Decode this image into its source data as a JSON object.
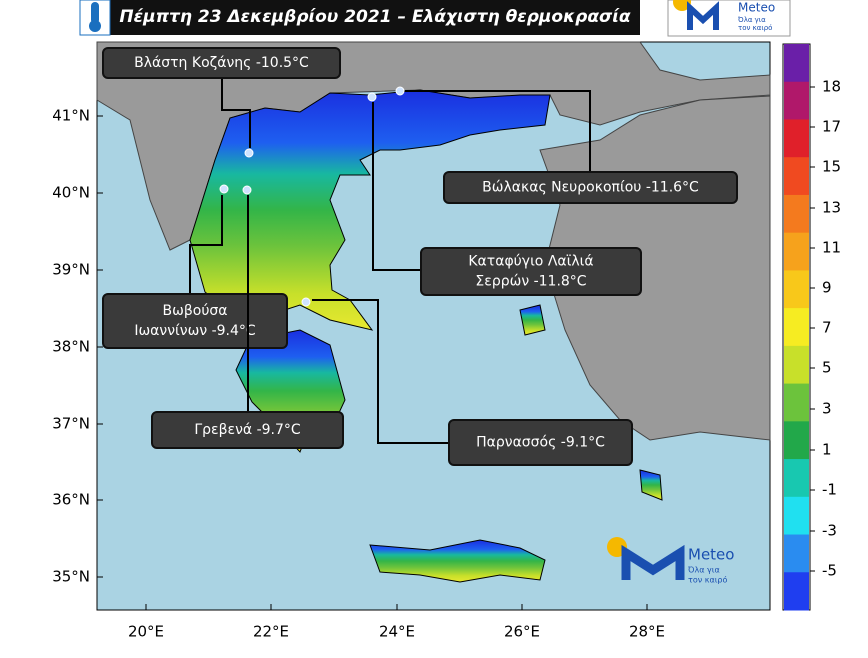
{
  "header": {
    "title": "Πέμπτη 23 Δεκεμβρίου 2021 – Ελάχιστη θερμοκρασία"
  },
  "logo": {
    "name": "Meteo",
    "slogan": [
      "Όλα για",
      "τον καιρό"
    ]
  },
  "axes": {
    "lat_labels": [
      "41°N",
      "40°N",
      "39°N",
      "38°N",
      "37°N",
      "36°N",
      "35°N"
    ],
    "lon_labels": [
      "20°E",
      "22°E",
      "24°E",
      "26°E",
      "28°E"
    ]
  },
  "colorbar": {
    "ticks": [
      18,
      17,
      15,
      13,
      11,
      9,
      7,
      5,
      3,
      1,
      -1,
      -3,
      -5
    ]
  },
  "callouts": [
    {
      "lines": [
        "Βλάστη Κοζάνης -10.5°C"
      ]
    },
    {
      "lines": [
        "Βώλακας Νευροκοπίου -11.6°C"
      ]
    },
    {
      "lines": [
        "Καταφύγιο Λαϊλιά",
        "Σερρών -11.8°C"
      ]
    },
    {
      "lines": [
        "Βωβούσα",
        "Ιωαννίνων -9.4°C"
      ]
    },
    {
      "lines": [
        "Γρεβενά -9.7°C"
      ]
    },
    {
      "lines": [
        "Παρνασσός -9.1°C"
      ]
    }
  ]
}
